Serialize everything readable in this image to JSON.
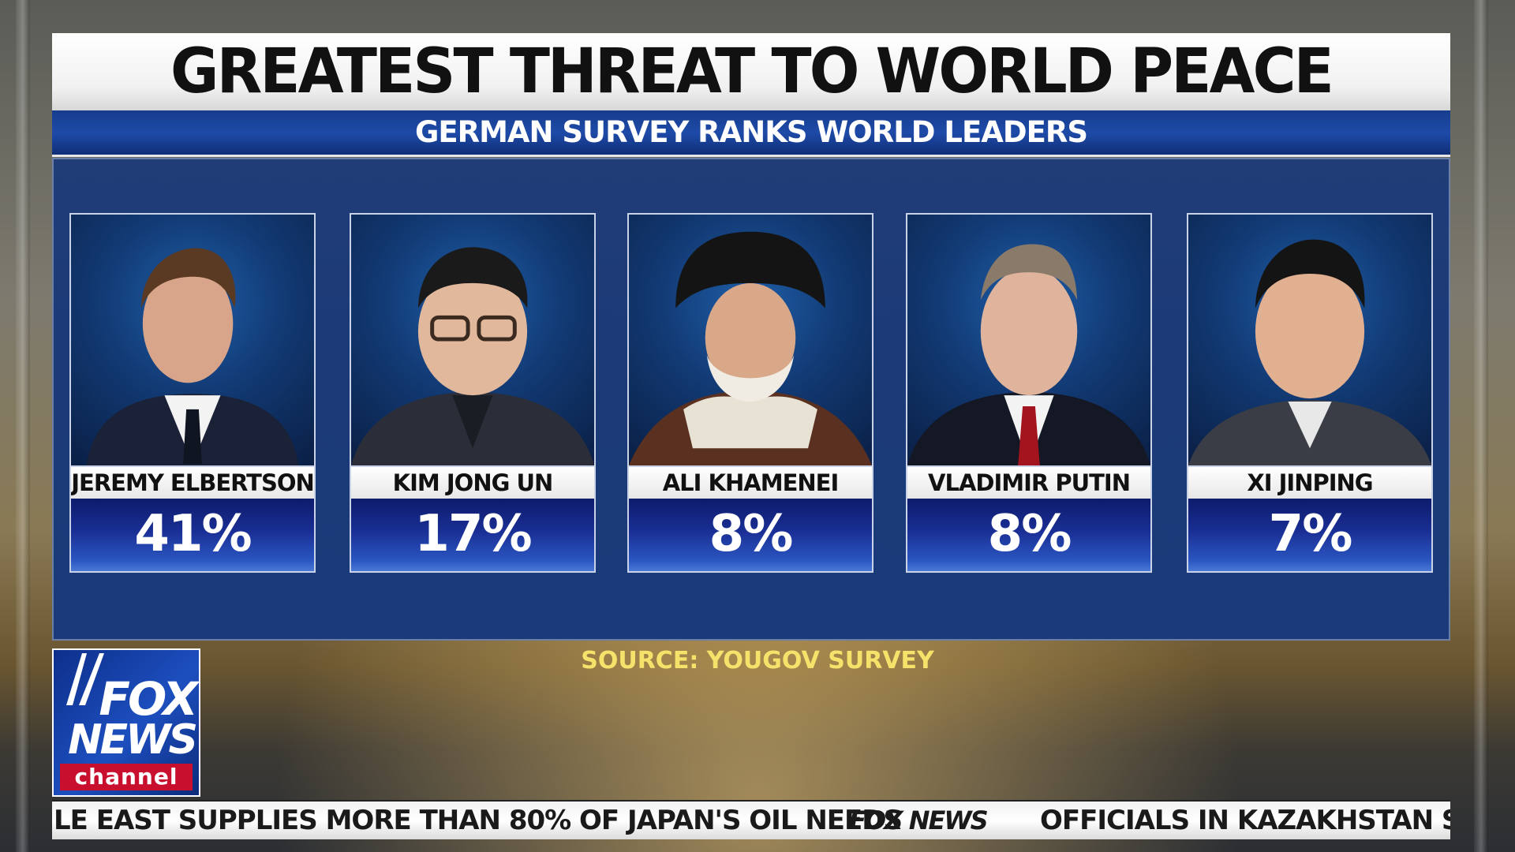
{
  "header": {
    "title": "GREATEST THREAT TO WORLD PEACE",
    "subtitle": "GERMAN SURVEY RANKS WORLD LEADERS"
  },
  "leaders": [
    {
      "name": "JEREMY ELBERTSON",
      "percent": "41%"
    },
    {
      "name": "KIM JONG UN",
      "percent": "17%"
    },
    {
      "name": "ALI KHAMENEI",
      "percent": "8%"
    },
    {
      "name": "VLADIMIR PUTIN",
      "percent": "8%"
    },
    {
      "name": "XI JINPING",
      "percent": "7%"
    }
  ],
  "source": "SOURCE: YOUGOV SURVEY",
  "logo": {
    "line1": "FOX",
    "line2": "NEWS",
    "line3": "channel"
  },
  "ticker": {
    "left_text": "LE EAST SUPPLIES MORE THAN 80% OF JAPAN'S OIL NEEDS",
    "logo_text": "FOX NEWS",
    "right_text": "OFFICIALS IN KAZAKHSTAN SA"
  },
  "colors": {
    "panel": "#1c3a78",
    "subtitle_bar": "#1e4ba8",
    "source_text": "#f4e26a",
    "channel_red": "#c8102e"
  }
}
